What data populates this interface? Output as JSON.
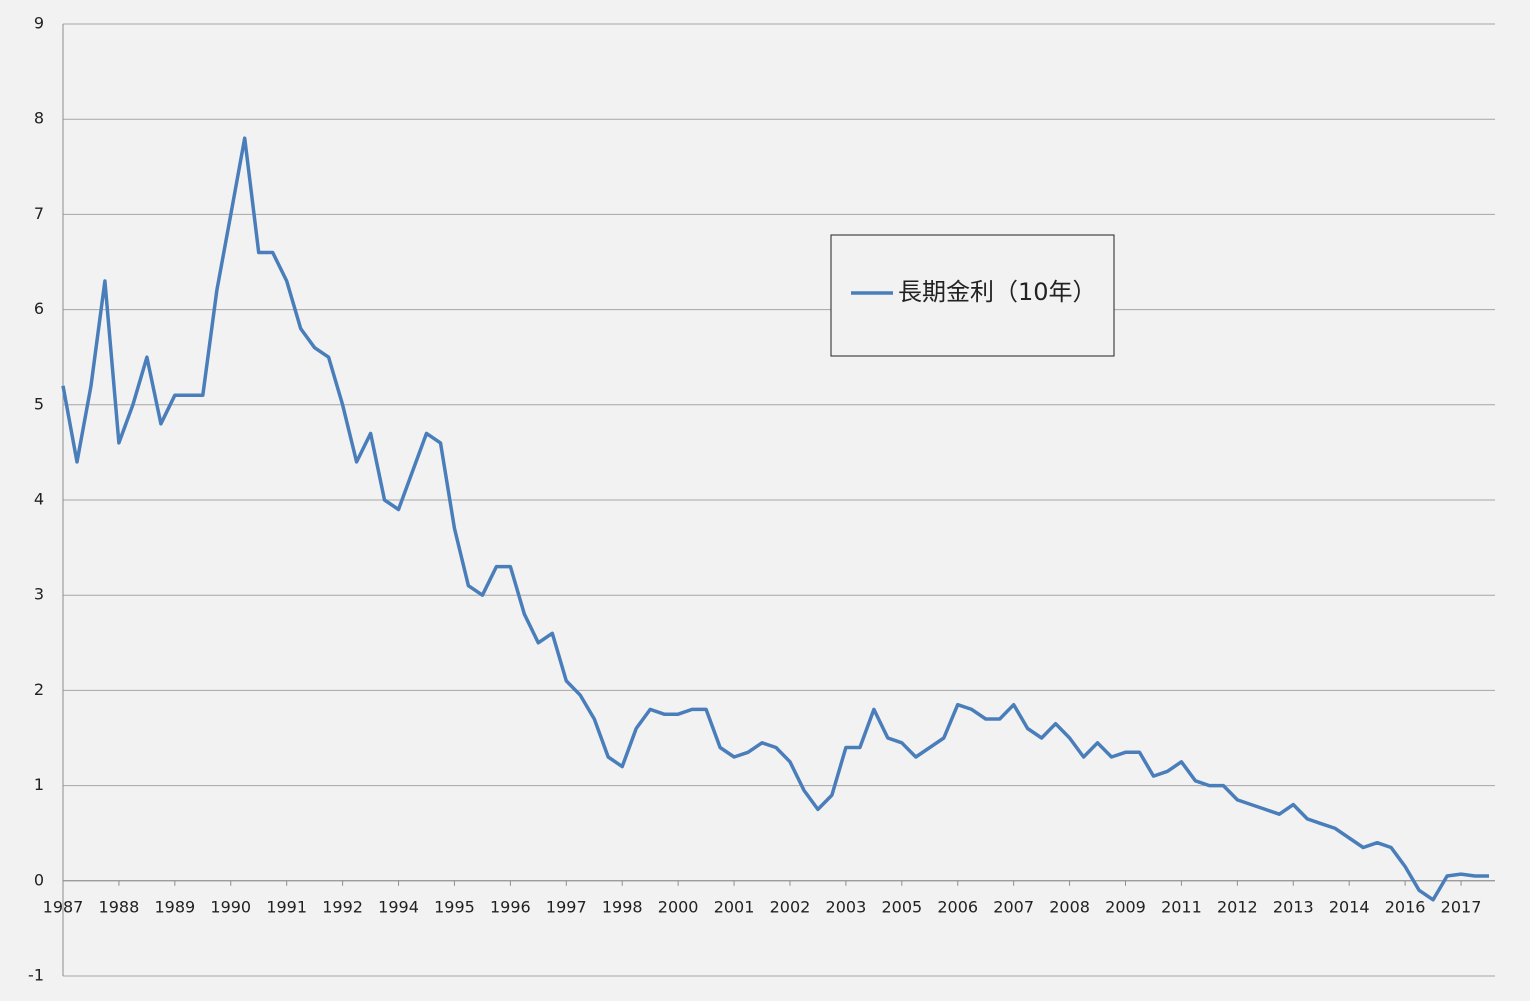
{
  "chart_data": {
    "type": "line",
    "categories": [
      "1987",
      null,
      null,
      null,
      "1988",
      null,
      null,
      null,
      "1989",
      null,
      null,
      null,
      "1990",
      null,
      null,
      null,
      "1991",
      null,
      null,
      null,
      "1992",
      null,
      null,
      null,
      "1994",
      null,
      null,
      null,
      "1995",
      null,
      null,
      null,
      "1996",
      null,
      null,
      null,
      "1997",
      null,
      null,
      null,
      "1998",
      null,
      null,
      null,
      "2000",
      null,
      null,
      null,
      "2001",
      null,
      null,
      null,
      "2002",
      null,
      null,
      null,
      "2003",
      null,
      null,
      null,
      "2005",
      null,
      null,
      null,
      "2006",
      null,
      null,
      null,
      "2007",
      null,
      null,
      null,
      "2008",
      null,
      null,
      null,
      "2009",
      null,
      null,
      null,
      "2011",
      null,
      null,
      null,
      "2012",
      null,
      null,
      null,
      "2013",
      null,
      null,
      null,
      "2014",
      null,
      null,
      null,
      "2016",
      null,
      null,
      null,
      "2017",
      null,
      null
    ],
    "series": [
      {
        "name": "長期金利（10年）",
        "color": "#4a7ebb",
        "values": [
          5.2,
          4.4,
          5.2,
          6.3,
          4.6,
          5.0,
          5.5,
          4.8,
          5.1,
          5.1,
          5.1,
          6.2,
          7.0,
          7.8,
          6.6,
          6.6,
          6.3,
          5.8,
          5.6,
          5.5,
          5.0,
          4.4,
          4.7,
          4.0,
          3.9,
          4.3,
          4.7,
          4.6,
          3.7,
          3.1,
          3.0,
          3.3,
          3.3,
          2.8,
          2.5,
          2.6,
          2.1,
          1.95,
          1.7,
          1.3,
          1.2,
          1.6,
          1.8,
          1.75,
          1.75,
          1.8,
          1.8,
          1.4,
          1.3,
          1.35,
          1.45,
          1.4,
          1.25,
          0.95,
          0.75,
          0.9,
          1.4,
          1.4,
          1.8,
          1.5,
          1.45,
          1.3,
          1.4,
          1.5,
          1.85,
          1.8,
          1.7,
          1.7,
          1.85,
          1.6,
          1.5,
          1.65,
          1.5,
          1.3,
          1.45,
          1.3,
          1.35,
          1.35,
          1.1,
          1.15,
          1.25,
          1.05,
          1.0,
          1.0,
          0.85,
          0.8,
          0.75,
          0.7,
          0.8,
          0.65,
          0.6,
          0.55,
          0.45,
          0.35,
          0.4,
          0.35,
          0.15,
          -0.1,
          -0.2,
          0.05,
          0.07,
          0.05,
          0.05
        ]
      }
    ],
    "ylim": [
      -1,
      9
    ],
    "yticks": [
      -1,
      0,
      1,
      2,
      3,
      4,
      5,
      6,
      7,
      8,
      9
    ],
    "grid": true
  }
}
